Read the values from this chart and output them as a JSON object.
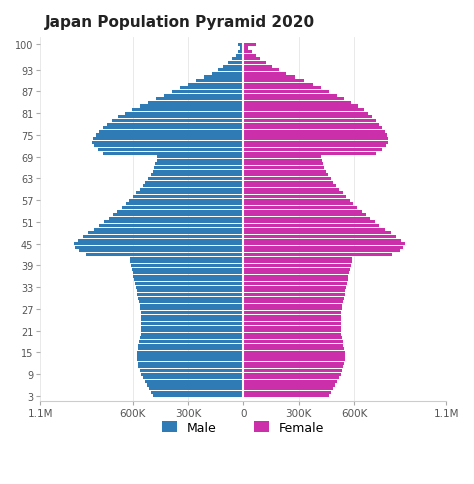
{
  "title": "Japan Population Pyramid 2020",
  "male_color": "#2e7bb5",
  "female_color": "#cc2faa",
  "background_color": "#ffffff",
  "xlim": 1100000,
  "xticks": [
    -1100000,
    -600000,
    -300000,
    0,
    300000,
    600000,
    1100000
  ],
  "xticklabels": [
    "1.1M",
    "600K",
    "300K",
    "0",
    "300K",
    "600K",
    "1.1M"
  ],
  "ytick_labels_at": [
    3,
    9,
    15,
    21,
    27,
    33,
    39,
    45,
    51,
    57,
    63,
    69,
    75,
    81,
    87,
    93,
    100
  ],
  "ages": [
    3,
    4,
    5,
    6,
    7,
    8,
    9,
    10,
    11,
    12,
    13,
    14,
    15,
    16,
    17,
    18,
    19,
    20,
    21,
    22,
    23,
    24,
    25,
    26,
    27,
    28,
    29,
    30,
    31,
    32,
    33,
    34,
    35,
    36,
    37,
    38,
    39,
    40,
    41,
    42,
    43,
    44,
    45,
    46,
    47,
    48,
    49,
    50,
    51,
    52,
    53,
    54,
    55,
    56,
    57,
    58,
    59,
    60,
    61,
    62,
    63,
    64,
    65,
    66,
    67,
    68,
    69,
    70,
    71,
    72,
    73,
    74,
    75,
    76,
    77,
    78,
    79,
    80,
    81,
    82,
    83,
    84,
    85,
    86,
    87,
    88,
    89,
    90,
    91,
    92,
    93,
    94,
    95,
    96,
    97,
    98,
    99,
    100
  ],
  "male": [
    490000,
    498000,
    510000,
    522000,
    535000,
    545000,
    555000,
    562000,
    568000,
    572000,
    576000,
    578000,
    576000,
    572000,
    568000,
    563000,
    558000,
    556000,
    555000,
    554000,
    553000,
    552000,
    553000,
    555000,
    558000,
    562000,
    566000,
    570000,
    574000,
    578000,
    582000,
    586000,
    590000,
    595000,
    600000,
    604000,
    608000,
    612000,
    616000,
    850000,
    890000,
    910000,
    920000,
    895000,
    870000,
    840000,
    810000,
    780000,
    755000,
    730000,
    706000,
    684000,
    660000,
    638000,
    618000,
    598000,
    580000,
    562000,
    546000,
    530000,
    515000,
    500000,
    490000,
    482000,
    476000,
    470000,
    465000,
    758000,
    790000,
    810000,
    820000,
    812000,
    800000,
    782000,
    762000,
    738000,
    710000,
    678000,
    642000,
    604000,
    562000,
    518000,
    474000,
    430000,
    386000,
    342000,
    298000,
    255000,
    212000,
    172000,
    138000,
    108000,
    82000,
    60000,
    42000,
    28000,
    16000,
    30000
  ],
  "female": [
    465000,
    473000,
    485000,
    497000,
    510000,
    520000,
    530000,
    537000,
    543000,
    547000,
    551000,
    553000,
    551000,
    547000,
    543000,
    538000,
    533000,
    531000,
    530000,
    529000,
    528000,
    527000,
    528000,
    530000,
    533000,
    537000,
    541000,
    545000,
    549000,
    553000,
    557000,
    561000,
    565000,
    570000,
    575000,
    579000,
    583000,
    587000,
    591000,
    808000,
    848000,
    868000,
    878000,
    853000,
    828000,
    798000,
    768000,
    738000,
    713000,
    688000,
    664000,
    642000,
    618000,
    596000,
    576000,
    556000,
    538000,
    520000,
    504000,
    488000,
    473000,
    458000,
    448000,
    440000,
    434000,
    428000,
    423000,
    718000,
    750000,
    772000,
    786000,
    784000,
    778000,
    766000,
    754000,
    738000,
    720000,
    700000,
    678000,
    652000,
    622000,
    586000,
    548000,
    508000,
    466000,
    422000,
    376000,
    328000,
    280000,
    234000,
    192000,
    156000,
    122000,
    93000,
    68000,
    47000,
    28000,
    70000
  ]
}
